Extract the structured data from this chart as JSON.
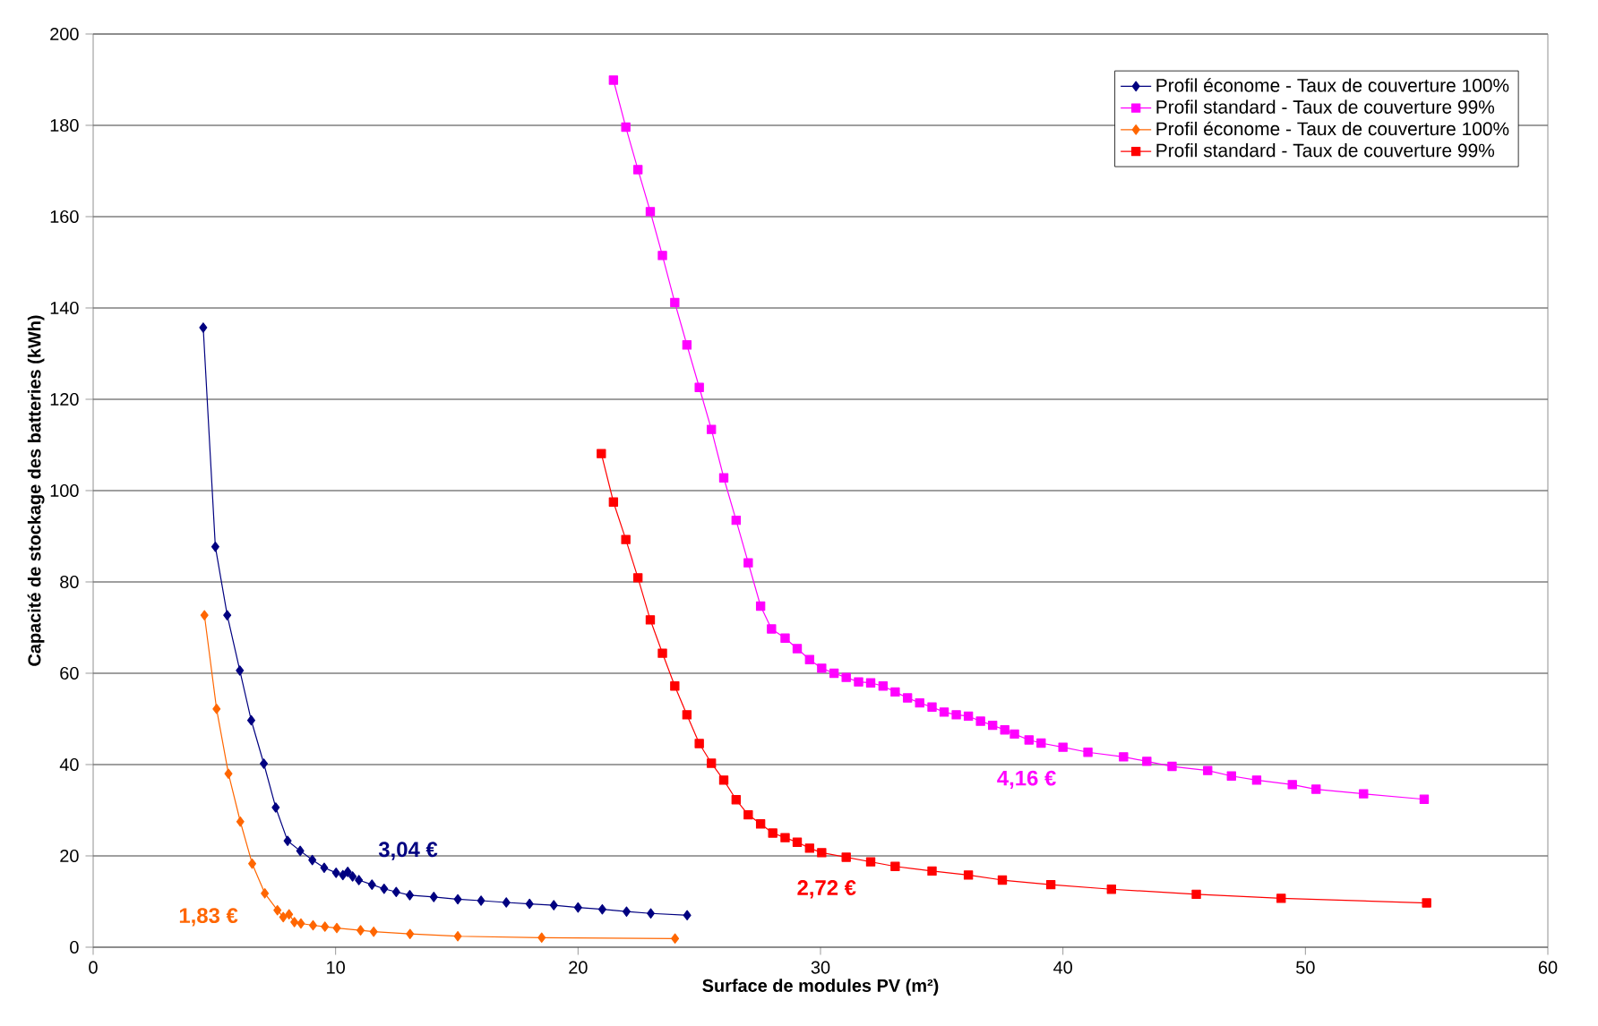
{
  "chart_data": {
    "type": "line",
    "xlabel": "Surface de modules PV (m²)",
    "ylabel": "Capacité de stockage des batteries (kWh)",
    "xlim": [
      0,
      60
    ],
    "xticks": [
      0,
      10,
      20,
      30,
      40,
      50,
      60
    ],
    "ylim": [
      0,
      200
    ],
    "yticks": [
      0,
      20,
      40,
      60,
      80,
      100,
      120,
      140,
      160,
      180,
      200
    ],
    "grid": "y",
    "legend": "top right",
    "series": [
      {
        "name": "Profil économe - Taux de couverture 100%",
        "color": "#000080",
        "marker": "diamond",
        "x": [
          4.54,
          5.04,
          5.53,
          6.05,
          6.52,
          7.04,
          7.53,
          8.02,
          8.54,
          9.04,
          9.53,
          10.02,
          10.3,
          10.5,
          10.7,
          10.96,
          11.5,
          12.0,
          12.5,
          13.06,
          14.05,
          15.04,
          16.0,
          17.04,
          18.0,
          19.0,
          20.0,
          21.0,
          22.0,
          23.0,
          24.5
        ],
        "values": [
          135.7,
          87.7,
          72.7,
          60.6,
          49.7,
          40.2,
          30.6,
          23.3,
          21.1,
          19.1,
          17.4,
          16.3,
          15.8,
          16.5,
          15.5,
          14.7,
          13.7,
          12.8,
          12.1,
          11.4,
          11.0,
          10.5,
          10.2,
          9.8,
          9.5,
          9.2,
          8.7,
          8.3,
          7.8,
          7.4,
          7.0
        ]
      },
      {
        "name": "Profil standard - Taux de couverture 99%",
        "color": "#ff00ff",
        "marker": "square",
        "x": [
          21.46,
          21.97,
          22.47,
          22.98,
          23.48,
          23.99,
          24.49,
          25.0,
          25.5,
          26.01,
          26.52,
          27.02,
          27.53,
          27.98,
          28.54,
          29.04,
          29.55,
          30.05,
          30.56,
          31.06,
          31.57,
          32.07,
          32.58,
          33.08,
          33.59,
          34.09,
          34.6,
          35.1,
          35.6,
          36.1,
          36.6,
          37.1,
          37.6,
          38.0,
          38.6,
          39.1,
          40.0,
          41.03,
          42.5,
          43.46,
          44.5,
          45.97,
          46.95,
          47.99,
          49.46,
          50.44,
          52.4,
          54.9
        ],
        "values": [
          189.9,
          179.6,
          170.3,
          161.1,
          151.5,
          141.2,
          131.9,
          122.6,
          113.4,
          102.8,
          93.5,
          84.2,
          74.7,
          69.7,
          67.7,
          65.4,
          63.0,
          61.1,
          60.0,
          59.1,
          58.1,
          57.9,
          57.2,
          55.9,
          54.6,
          53.5,
          52.6,
          51.5,
          50.9,
          50.6,
          49.5,
          48.6,
          47.6,
          46.7,
          45.4,
          44.7,
          43.8,
          42.7,
          41.7,
          40.7,
          39.6,
          38.7,
          37.5,
          36.6,
          35.6,
          34.6,
          33.6,
          32.4
        ]
      },
      {
        "name": "Profil économe - Taux de couverture 100%",
        "color": "#ff6600",
        "marker": "diamond",
        "x": [
          4.59,
          5.09,
          5.58,
          6.07,
          6.56,
          7.08,
          7.6,
          7.84,
          8.08,
          8.3,
          8.57,
          9.07,
          9.56,
          10.05,
          11.03,
          11.57,
          13.07,
          15.04,
          18.5,
          24.0
        ],
        "values": [
          72.7,
          52.2,
          38.0,
          27.5,
          18.3,
          11.8,
          8.1,
          6.6,
          7.2,
          5.5,
          5.2,
          4.8,
          4.5,
          4.2,
          3.7,
          3.4,
          2.9,
          2.4,
          2.1,
          1.9
        ]
      },
      {
        "name": "Profil standard - Taux de couverture 99%",
        "color": "#ff0000",
        "marker": "square",
        "x": [
          20.96,
          21.46,
          21.97,
          22.47,
          22.98,
          23.48,
          23.99,
          24.49,
          25.0,
          25.5,
          26.01,
          26.52,
          27.02,
          27.53,
          28.03,
          28.54,
          29.04,
          29.55,
          30.05,
          31.06,
          32.07,
          33.08,
          34.6,
          36.1,
          37.5,
          39.5,
          42.0,
          45.5,
          49.0,
          55.0
        ],
        "values": [
          108.1,
          97.5,
          89.3,
          80.9,
          71.7,
          64.4,
          57.2,
          50.9,
          44.6,
          40.3,
          36.6,
          32.3,
          29.0,
          27.0,
          25.0,
          24.0,
          23.0,
          21.7,
          20.7,
          19.7,
          18.7,
          17.7,
          16.7,
          15.8,
          14.7,
          13.7,
          12.7,
          11.6,
          10.7,
          9.7
        ]
      }
    ],
    "annotations": [
      {
        "text": "3,04 €",
        "x": 10.5,
        "y": 16.5
      },
      {
        "text": "1,83 €",
        "x": 7.84,
        "y": 6.6
      },
      {
        "text": "2,72 €",
        "x": 30.05,
        "y": 20.7
      },
      {
        "text": "4,16 €",
        "x": 39.1,
        "y": 44.7
      }
    ]
  }
}
